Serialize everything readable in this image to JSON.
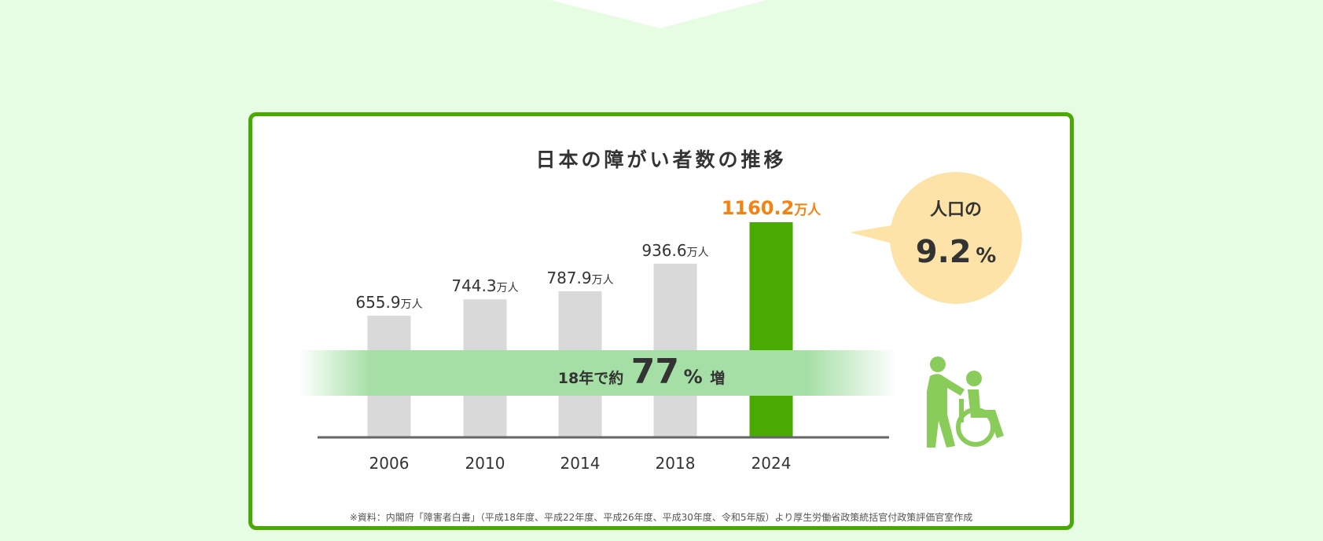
{
  "colors": {
    "background": "#e6fde4",
    "card_border": "#4aaa04",
    "bar_default": "#d9d9d9",
    "bar_highlight": "#4aaa04",
    "highlight_text": "#f5820f",
    "band": "#a6dfa6",
    "bubble": "#fee3a8",
    "icon": "#8acc5a"
  },
  "chart_data": {
    "type": "bar",
    "title": "日本の障がい者数の推移",
    "categories": [
      "2006",
      "2010",
      "2014",
      "2018",
      "2024"
    ],
    "values": [
      655.9,
      744.3,
      787.9,
      936.6,
      1160.2
    ],
    "value_labels": [
      "655.9",
      "744.3",
      "787.9",
      "936.6",
      "1160.2"
    ],
    "unit": "万人",
    "highlight_index": 4,
    "grid": false,
    "annotations": {
      "band_prefix": "18年で約",
      "band_number": "77",
      "band_percent": "%",
      "band_suffix": "増",
      "bubble_line1": "人口の",
      "bubble_number": "9.2",
      "bubble_percent": "%"
    }
  },
  "source_note": "※資料：内閣府「障害者白書」（平成18年度、平成22年度、平成26年度、平成30年度、令和5年版）より厚生労働省政策統括官付政策評価官室作成",
  "icons": [
    "wheelchair-caregiver-icon"
  ]
}
